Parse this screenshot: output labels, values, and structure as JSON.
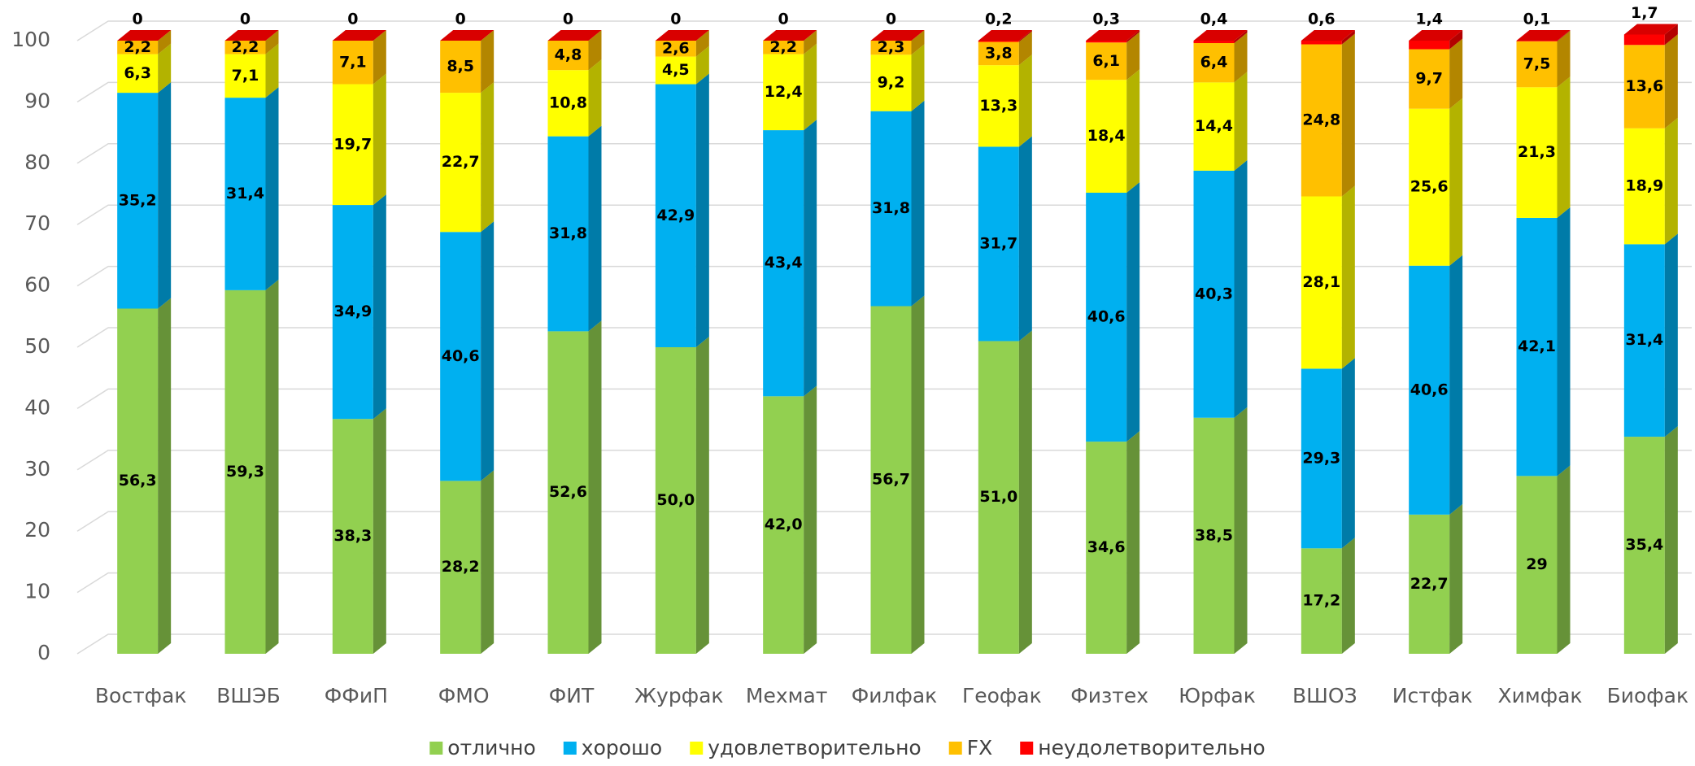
{
  "chart_data": {
    "type": "bar3d_stacked",
    "categories": [
      "Востфак",
      "ВШЭБ",
      "ФФиП",
      "ФМО",
      "ФИТ",
      "Журфак",
      "Мехмат",
      "Филфак",
      "Геофак",
      "Физтех",
      "Юрфак",
      "ВШОЗ",
      "Истфак",
      "Химфак",
      "Биофак"
    ],
    "series": [
      {
        "name": "отлично",
        "color": "#92d050",
        "values": [
          56.3,
          59.3,
          38.3,
          28.2,
          52.6,
          50.0,
          42.0,
          56.7,
          51.0,
          34.6,
          38.5,
          17.2,
          22.7,
          29,
          35.4
        ],
        "value_labels": [
          "56,3",
          "59,3",
          "38,3",
          "28,2",
          "52,6",
          "50,0",
          "42,0",
          "56,7",
          "51,0",
          "34,6",
          "38,5",
          "17,2",
          "22,7",
          "29",
          "35,4"
        ]
      },
      {
        "name": "хорошо",
        "color": "#00b0f0",
        "values": [
          35.2,
          31.4,
          34.9,
          40.6,
          31.8,
          42.9,
          43.4,
          31.8,
          31.7,
          40.6,
          40.3,
          29.3,
          40.6,
          42.1,
          31.4
        ],
        "value_labels": [
          "35,2",
          "31,4",
          "34,9",
          "40,6",
          "31,8",
          "42,9",
          "43,4",
          "31,8",
          "31,7",
          "40,6",
          "40,3",
          "29,3",
          "40,6",
          "42,1",
          "31,4"
        ]
      },
      {
        "name": "удовлетворительно",
        "color": "#ffff00",
        "values": [
          6.3,
          7.1,
          19.7,
          22.7,
          10.8,
          4.5,
          12.4,
          9.2,
          13.3,
          18.4,
          14.4,
          28.1,
          25.6,
          21.3,
          18.9
        ],
        "value_labels": [
          "6,3",
          "7,1",
          "19,7",
          "22,7",
          "10,8",
          "4,5",
          "12,4",
          "9,2",
          "13,3",
          "18,4",
          "14,4",
          "28,1",
          "25,6",
          "21,3",
          "18,9"
        ]
      },
      {
        "name": "FX",
        "color": "#ffc000",
        "values": [
          2.2,
          2.2,
          7.1,
          8.5,
          4.8,
          2.6,
          2.2,
          2.3,
          3.8,
          6.1,
          6.4,
          24.8,
          9.7,
          7.5,
          13.6
        ],
        "value_labels": [
          "2,2",
          "2,2",
          "7,1",
          "8,5",
          "4,8",
          "2,6",
          "2,2",
          "2,3",
          "3,8",
          "6,1",
          "6,4",
          "24,8",
          "9,7",
          "7,5",
          "13,6"
        ]
      },
      {
        "name": "неудолетворительно",
        "color": "#ff0000",
        "values": [
          0,
          0,
          0,
          0,
          0,
          0,
          0,
          0,
          0.2,
          0.3,
          0.4,
          0.6,
          1.4,
          0.1,
          1.7
        ],
        "value_labels": [
          "0",
          "0",
          "0",
          "0",
          "0",
          "0",
          "0",
          "0",
          "0,2",
          "0,3",
          "0,4",
          "0,6",
          "1,4",
          "0,1",
          "1,7"
        ]
      }
    ],
    "ylim": [
      0,
      100
    ],
    "yticks": [
      0,
      10,
      20,
      30,
      40,
      50,
      60,
      70,
      80,
      90,
      100
    ],
    "grid": true,
    "legend": "bottom"
  }
}
